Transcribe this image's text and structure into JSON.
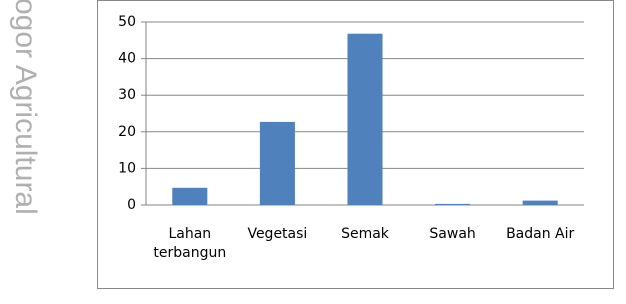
{
  "watermark": "ogor Agricultural",
  "chart_data": {
    "type": "bar",
    "categories": [
      "Lahan terbangun",
      "Vegetasi",
      "Semak",
      "Sawah",
      "Badan Air"
    ],
    "values": [
      4.7,
      22.7,
      46.8,
      0.3,
      1.2
    ],
    "color": "#4f81bd",
    "ylim": [
      0,
      50
    ],
    "yticks": [
      0,
      10,
      20,
      30,
      40,
      50
    ],
    "grid": true
  }
}
